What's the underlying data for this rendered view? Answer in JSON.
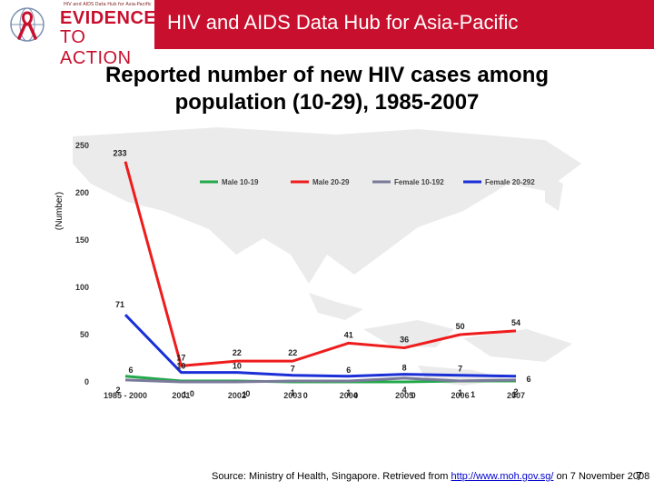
{
  "header": {
    "logo_small_text": "HIV and AIDS Data Hub for Asia-Pacific",
    "logo_line1": "EVIDENCE",
    "logo_line2": "TO ACTION",
    "title": "HIV and AIDS Data Hub for Asia-Pacific",
    "brand_color": "#c8102e"
  },
  "slide": {
    "title_line1": "Reported number of new HIV cases among",
    "title_line2": "population (10-29), 1985-2007"
  },
  "chart_data": {
    "type": "line",
    "title": "Reported number of new HIV cases among population (10-29), 1985-2007",
    "xlabel": "",
    "ylabel": "(Number)",
    "categories": [
      "1985 - 2000",
      "2001",
      "2002",
      "2003",
      "2004",
      "2005",
      "2006",
      "2007"
    ],
    "ylim": [
      0,
      250
    ],
    "yticks": [
      0,
      50,
      100,
      150,
      200,
      250
    ],
    "grid": false,
    "legend_position": "top",
    "background": "faint map of Asia-Pacific",
    "series": [
      {
        "name": "Male 10-19",
        "color": "#22a84a",
        "values": [
          6,
          1,
          1,
          0,
          0,
          0,
          1,
          1
        ],
        "labels": [
          "6",
          "1",
          "1",
          "0",
          "0",
          "0",
          "1",
          "1"
        ]
      },
      {
        "name": "Male 20-29",
        "color": "#ee1c1c",
        "values": [
          233,
          17,
          22,
          22,
          41,
          36,
          50,
          54
        ],
        "labels": [
          "233",
          "17",
          "22",
          "22",
          "41",
          "36",
          "50",
          "54"
        ]
      },
      {
        "name": "Female 10-192",
        "color": "#7a7a9a",
        "values": [
          2,
          0,
          0,
          1,
          1,
          4,
          1,
          2
        ],
        "labels": [
          "2",
          "0",
          "0",
          "1",
          "1",
          "4",
          "1",
          "2"
        ]
      },
      {
        "name": "Female 20-292",
        "color": "#1a2fd6",
        "values": [
          71,
          10,
          10,
          7,
          6,
          8,
          7,
          6
        ],
        "labels": [
          "71",
          "10",
          "10",
          "7",
          "6",
          "8",
          "7",
          "6"
        ]
      }
    ]
  },
  "footer": {
    "source_prefix": "Source: Ministry of Health, Singapore. Retrieved from ",
    "source_link": "http://www.moh.gov.sg/",
    "source_suffix": " on 7 November 2008",
    "page_number": "7"
  }
}
